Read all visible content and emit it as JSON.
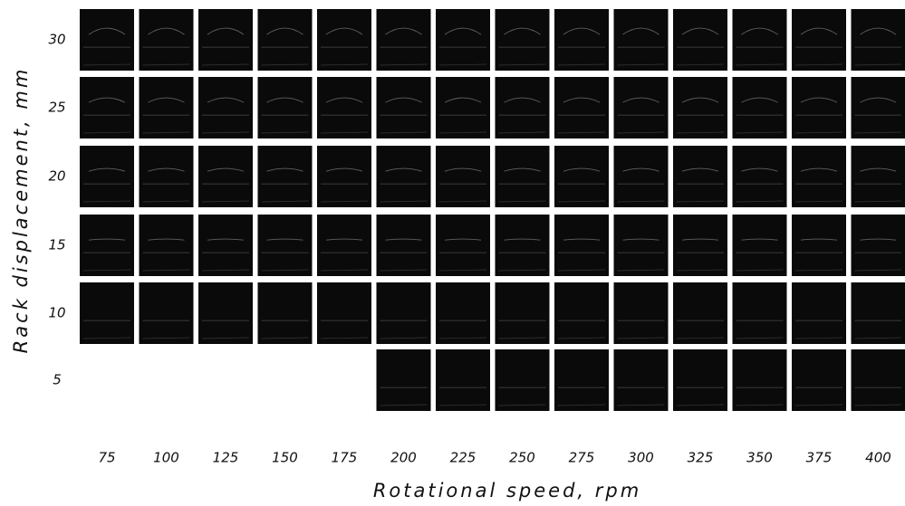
{
  "figure": {
    "y_axis_label": "Rack displacement, mm",
    "x_axis_label": "Rotational speed, rpm",
    "x_labels": [
      "75",
      "100",
      "125",
      "150",
      "175",
      "200",
      "225",
      "250",
      "275",
      "300",
      "325",
      "350",
      "375",
      "400"
    ],
    "y_labels": [
      "30",
      "25",
      "20",
      "15",
      "10",
      "5"
    ]
  }
}
